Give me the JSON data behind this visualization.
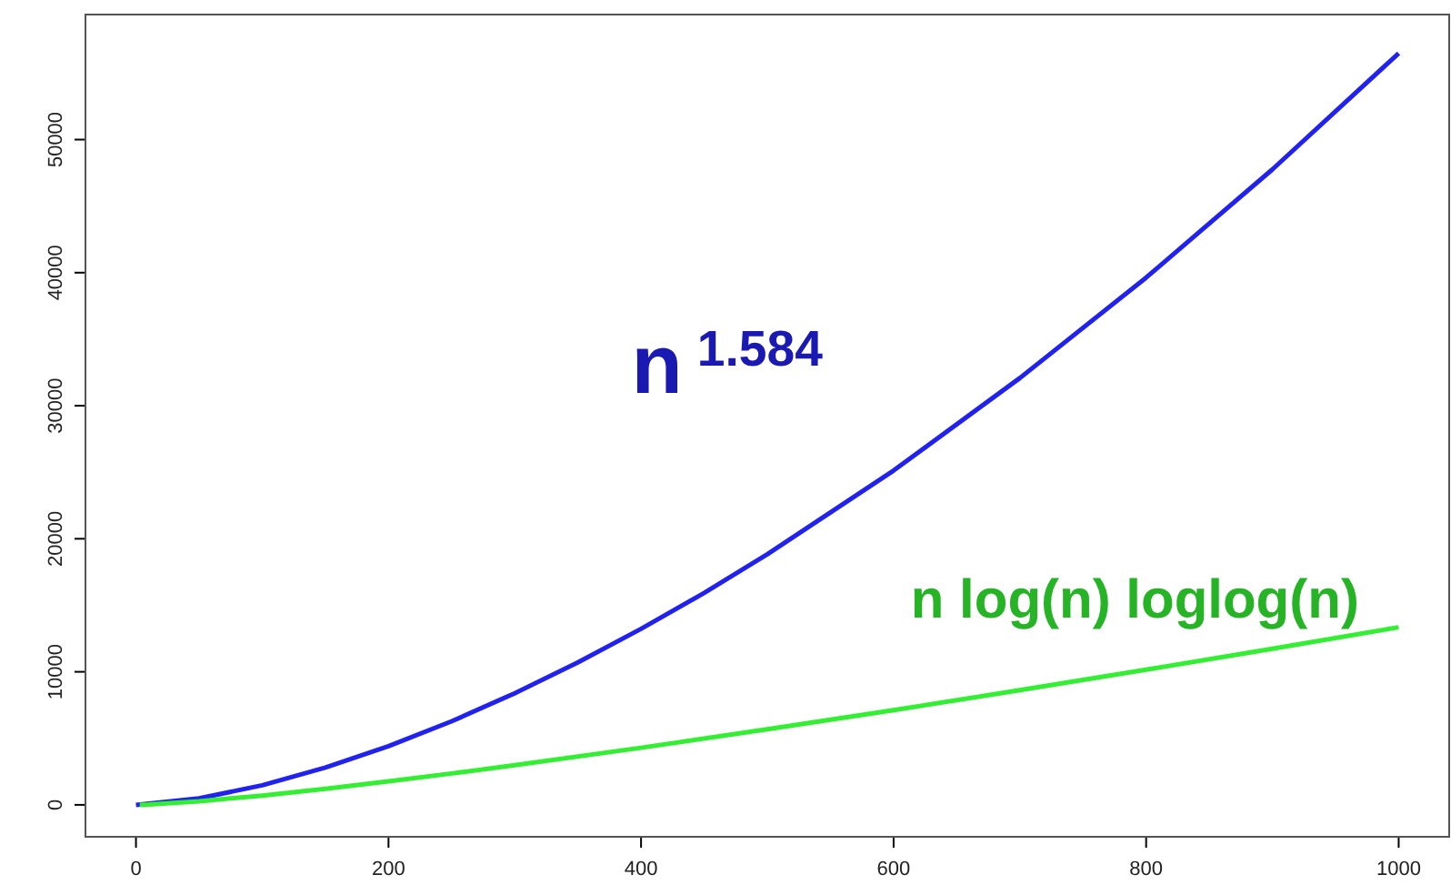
{
  "chart_data": {
    "type": "line",
    "xlim": [
      -40,
      1040
    ],
    "ylim": [
      -2400,
      59400
    ],
    "xticks": [
      0,
      200,
      400,
      600,
      800,
      1000
    ],
    "yticks": [
      0,
      10000,
      20000,
      30000,
      40000,
      50000
    ],
    "grid": false,
    "legend": false,
    "marker": "none",
    "line_style": "solid",
    "series": [
      {
        "name": "n $^{1.584}$",
        "color": "#2222ee",
        "x": [
          0,
          50,
          100,
          150,
          200,
          250,
          300,
          350,
          400,
          450,
          500,
          600,
          700,
          800,
          900,
          1000
        ],
        "values": [
          0,
          490,
          1470,
          2800,
          4410,
          6280,
          8390,
          10710,
          13230,
          15930,
          18830,
          25130,
          32080,
          39630,
          47760,
          56490
        ]
      },
      {
        "name": "n log(n) loglog(n)",
        "color": "#33ee33",
        "x": [
          3,
          10,
          50,
          100,
          150,
          200,
          250,
          300,
          400,
          500,
          600,
          700,
          800,
          900,
          1000
        ],
        "values": [
          0,
          20,
          270,
          700,
          1210,
          1770,
          2360,
          2980,
          4290,
          5680,
          7120,
          8620,
          10160,
          11740,
          13350
        ]
      }
    ]
  }
}
